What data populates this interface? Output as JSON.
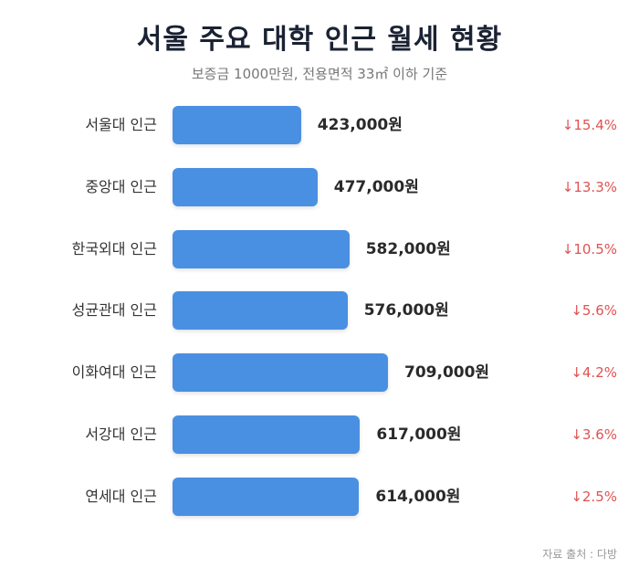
{
  "chart_data": {
    "type": "bar",
    "orientation": "horizontal",
    "title": "서울 주요 대학 인근 월세 현황",
    "subtitle": "보증금 1000만원, 전용면적 33㎡ 이하 기준",
    "unit": "원",
    "categories": [
      "서울대 인근",
      "중앙대 인근",
      "한국외대 인근",
      "성균관대 인근",
      "이화여대 인근",
      "서강대 인근",
      "연세대 인근"
    ],
    "values": [
      423000,
      477000,
      582000,
      576000,
      709000,
      617000,
      614000
    ],
    "value_labels": [
      "423,000원",
      "477,000원",
      "582,000원",
      "576,000원",
      "709,000원",
      "617,000원",
      "614,000원"
    ],
    "changes": [
      "↓15.4%",
      "↓13.3%",
      "↓10.5%",
      "↓5.6%",
      "↓4.2%",
      "↓3.6%",
      "↓2.5%"
    ],
    "bar_color": "#4a90e2",
    "change_color": "#e05252",
    "source": "자료 출처 : 다방"
  }
}
